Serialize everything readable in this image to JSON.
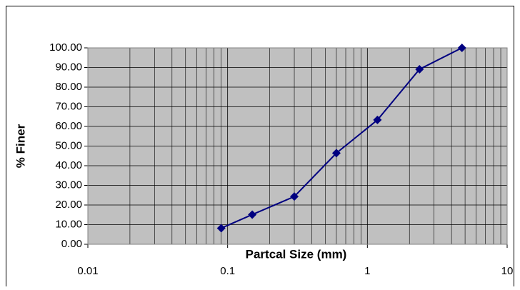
{
  "chart_data": {
    "type": "line",
    "xlabel": "Partcal Size (mm)",
    "ylabel": "% Finer",
    "x": [
      0.09,
      0.15,
      0.3,
      0.6,
      1.18,
      2.36,
      4.75
    ],
    "series": [
      {
        "name": "% Finer",
        "color": "#000080",
        "values": [
          8.2,
          15.1,
          24.3,
          46.4,
          63.3,
          89.1,
          100
        ]
      }
    ],
    "xscale": "log",
    "xlim": [
      0.01,
      10
    ],
    "xticks": [
      0.01,
      0.1,
      1,
      10
    ],
    "ylim": [
      0,
      100
    ],
    "yticks": [
      {
        "value": 0,
        "label": "0.00"
      },
      {
        "value": 10,
        "label": "10.00"
      },
      {
        "value": 20,
        "label": "20.00"
      },
      {
        "value": 30,
        "label": "30.00"
      },
      {
        "value": 40,
        "label": "40.00"
      },
      {
        "value": 50,
        "label": "50.00"
      },
      {
        "value": 60,
        "label": "60.00"
      },
      {
        "value": 70,
        "label": "70.00"
      },
      {
        "value": 80,
        "label": "80.00"
      },
      {
        "value": 90,
        "label": "90.00"
      },
      {
        "value": 100,
        "label": "100.00"
      }
    ],
    "grid": true,
    "minor_grid": true,
    "plot_background": "#c0c0c0"
  }
}
